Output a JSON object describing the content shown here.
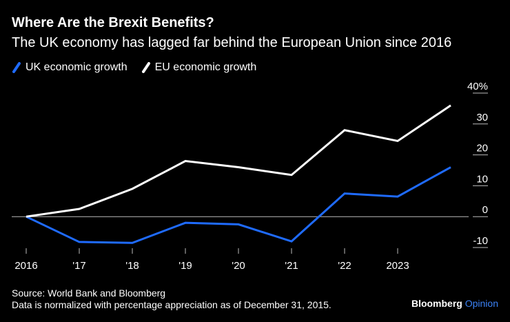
{
  "header": {
    "title": "Where Are the Brexit Benefits?",
    "subtitle": "The UK economy has lagged far behind the European Union since 2016"
  },
  "legend": {
    "uk_label": "UK economic growth",
    "eu_label": "EU economic growth"
  },
  "colors": {
    "uk": "#1f6bff",
    "eu": "#ffffff",
    "background": "#000000",
    "grid": "#bbbbbb"
  },
  "chart_data": {
    "type": "line",
    "title": "Where Are the Brexit Benefits?",
    "x": [
      2016,
      2017,
      2018,
      2019,
      2020,
      2021,
      2022,
      2023,
      2024
    ],
    "x_tick_labels": [
      "2016",
      "'17",
      "'18",
      "'19",
      "'20",
      "'21",
      "'22",
      "2023"
    ],
    "y_tick_labels": [
      "40%",
      "30",
      "20",
      "10",
      "0",
      "-10"
    ],
    "y_ticks": [
      40,
      30,
      20,
      10,
      0,
      -10
    ],
    "ylim": [
      -10,
      40
    ],
    "series": [
      {
        "name": "UK economic growth",
        "values": [
          0,
          -8.2,
          -8.5,
          -2,
          -2.5,
          -8,
          7.5,
          6.5,
          16
        ]
      },
      {
        "name": "EU economic growth",
        "values": [
          0,
          2.5,
          9,
          18,
          16,
          13.5,
          28,
          24.5,
          36
        ]
      }
    ],
    "xlabel": "",
    "ylabel": ""
  },
  "footer": {
    "source": "Source: World Bank and Bloomberg",
    "note": "Data is normalized with percentage appreciation as of December 31, 2015.",
    "brand_bold": "Bloomberg",
    "brand_light": "Opinion"
  }
}
